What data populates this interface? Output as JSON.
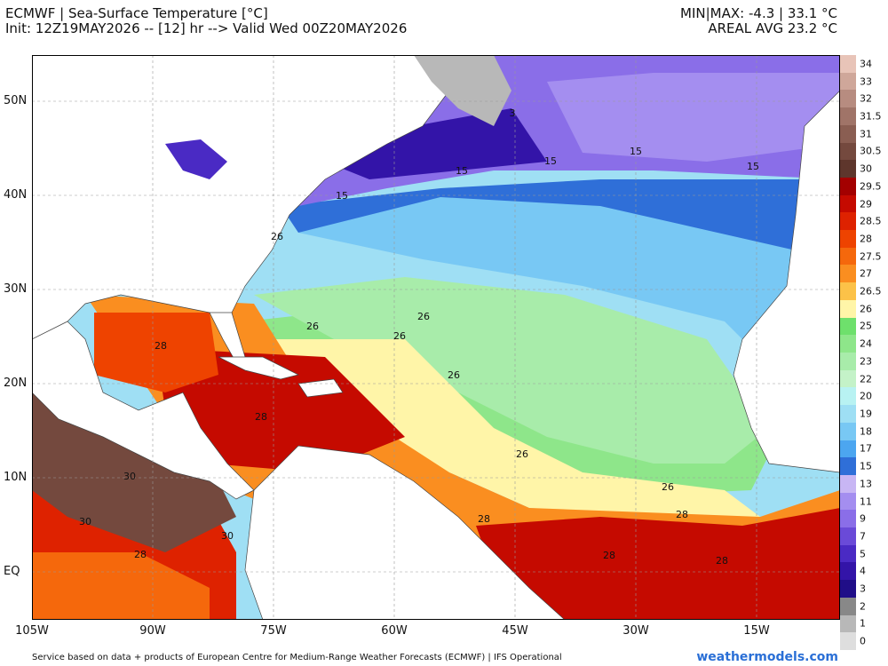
{
  "header": {
    "title": "ECMWF | Sea-Surface Temperature [°C]",
    "init": "Init: 12Z19MAY2026 -- [12] hr --> Valid Wed 00Z20MAY2026",
    "minmax": "MIN|MAX: -4.3 | 33.1 °C",
    "areal_avg": "AREAL AVG 23.2 °C"
  },
  "lat_labels": [
    "50N",
    "40N",
    "30N",
    "20N",
    "10N",
    "EQ"
  ],
  "lon_labels": [
    "105W",
    "90W",
    "75W",
    "60W",
    "45W",
    "30W",
    "15W"
  ],
  "colorbar": {
    "labels": [
      "34",
      "33",
      "32",
      "31.5",
      "31",
      "30.5",
      "30",
      "29.5",
      "29",
      "28.5",
      "28",
      "27.5",
      "27",
      "26.5",
      "26",
      "25",
      "24",
      "23",
      "22",
      "20",
      "19",
      "18",
      "17",
      "15",
      "13",
      "11",
      "9",
      "7",
      "5",
      "4",
      "3",
      "2",
      "1",
      "0"
    ],
    "colors": [
      "#e8c4b8",
      "#cfa79a",
      "#b78c80",
      "#a07468",
      "#8a5e52",
      "#74493e",
      "#5e362c",
      "#a30000",
      "#c50a00",
      "#de2200",
      "#ee4300",
      "#f5680c",
      "#fa8e20",
      "#fcc248",
      "#fff5a8",
      "#6ee06c",
      "#8ee68a",
      "#a8ecaa",
      "#c4f2c8",
      "#b8f2f2",
      "#9edff4",
      "#78c8f4",
      "#4ca6f0",
      "#2f6fd8",
      "#c8b6f4",
      "#a48ef0",
      "#8a6ee8",
      "#6a4ad8",
      "#4a2ac4",
      "#3314a8",
      "#200e88",
      "#888888",
      "#b8b8b8",
      "#dedede"
    ]
  },
  "contour_labels": [
    "15",
    "15",
    "15",
    "15",
    "15",
    "3",
    "26",
    "26",
    "26",
    "26",
    "26",
    "26",
    "26",
    "28",
    "28",
    "28",
    "28",
    "28",
    "28",
    "28",
    "30",
    "30",
    "30"
  ],
  "footer": "Service based on data + products of European Centre for Medium-Range Weather Forecasts (ECMWF) | IFS Operational",
  "brand": "weathermodels.com"
}
